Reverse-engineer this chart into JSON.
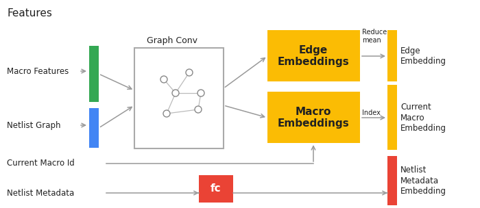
{
  "background_color": "#ffffff",
  "labels": {
    "features": "Features",
    "macro_features": "Macro Features",
    "netlist_graph": "Netlist Graph",
    "graph_conv": "Graph Conv",
    "edge_embeddings": "Edge\nEmbeddings",
    "macro_embeddings": "Macro\nEmbeddings",
    "edge_embedding_out": "Edge\nEmbedding",
    "current_macro_embedding": "Current\nMacro\nEmbedding",
    "current_macro_id": "Current Macro Id",
    "netlist_metadata": "Netlist Metadata",
    "fc": "fc",
    "netlist_metadata_embedding": "Netlist\nMetadata\nEmbedding",
    "reduce_mean": "Reduce\nmean",
    "index": "Index"
  },
  "colors": {
    "green": "#34a853",
    "blue": "#4285f4",
    "orange": "#fbbc04",
    "red": "#ea4335",
    "graph_conv_border": "#aaaaaa",
    "arrow": "#999999",
    "text": "#212121",
    "white": "#ffffff"
  },
  "layout": {
    "figw": 7.0,
    "figh": 3.04,
    "dpi": 100
  }
}
